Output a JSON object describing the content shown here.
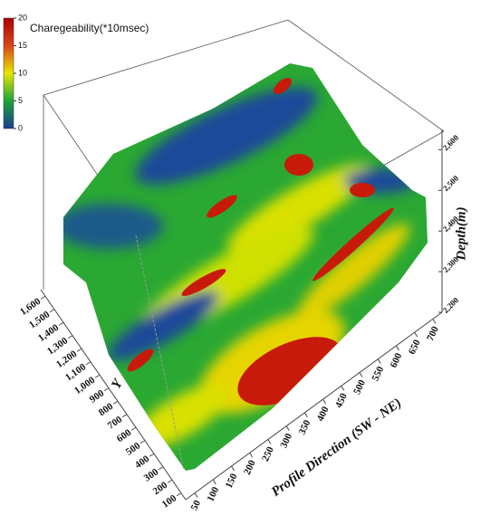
{
  "chart_data": {
    "type": "surface3d",
    "colorbar": {
      "title": "Charegeability(*10msec)",
      "lim": [
        0,
        20
      ],
      "ticks": [
        0,
        5,
        10,
        15,
        20
      ],
      "colors": [
        "#1a3d8f",
        "#1fa33a",
        "#e6e600",
        "#d8481a",
        "#b00000"
      ]
    },
    "xlabel": "Profile Direction  (SW - NE)",
    "xlim": [
      25,
      725
    ],
    "xticks": [
      50,
      100,
      150,
      200,
      250,
      300,
      350,
      400,
      450,
      500,
      550,
      600,
      650,
      700
    ],
    "ylabel": "Y",
    "ylim": [
      50,
      1650
    ],
    "yticks": [
      100,
      200,
      300,
      400,
      500,
      600,
      700,
      800,
      900,
      {
        "value": 1000,
        "label": "1,000"
      },
      {
        "value": 1100,
        "label": "1,100"
      },
      {
        "value": 1200,
        "label": "1,200"
      },
      {
        "value": 1300,
        "label": "1,300"
      },
      {
        "value": 1400,
        "label": "1,400"
      },
      {
        "value": 1500,
        "label": "1,500"
      },
      {
        "value": 1600,
        "label": "1,600"
      }
    ],
    "zlabel": "Depth(m)",
    "zlim": [
      2200,
      2650
    ],
    "zticks": [
      {
        "value": 2200,
        "label": "2,200"
      },
      {
        "value": 2300,
        "label": "2,300"
      },
      {
        "value": 2400,
        "label": "2,400"
      },
      {
        "value": 2500,
        "label": "2,500"
      },
      {
        "value": 2600,
        "label": "2,600"
      }
    ]
  }
}
